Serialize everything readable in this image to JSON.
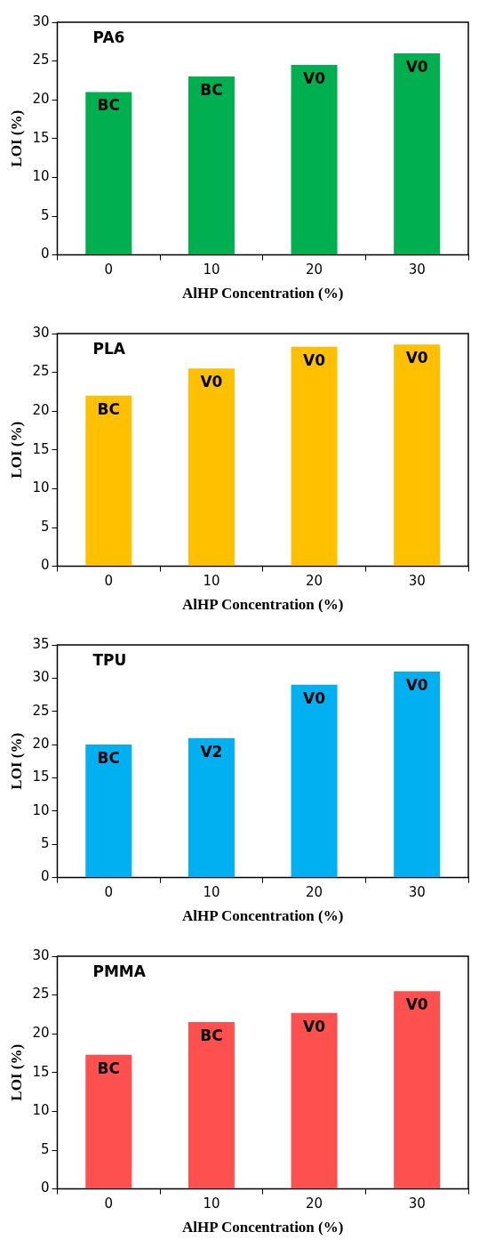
{
  "chart_data": [
    {
      "type": "bar",
      "title": "PA6",
      "xlabel": "AlHP Concentration (%)",
      "ylabel": "LOI (%)",
      "categories": [
        "0",
        "10",
        "20",
        "30"
      ],
      "values": [
        21,
        23,
        24.5,
        26
      ],
      "color": "#00b050",
      "ylim": [
        0,
        30
      ],
      "yticks": [
        0,
        5,
        10,
        15,
        20,
        25,
        30
      ],
      "grid": false,
      "legend": false,
      "annotations": [
        {
          "text": "BC",
          "x": "0",
          "y": 21
        },
        {
          "text": "BC",
          "x": "10",
          "y": 23
        },
        {
          "text": "V0",
          "x": "20",
          "y": 24.5
        },
        {
          "text": "V0",
          "x": "30",
          "y": 26
        }
      ]
    },
    {
      "type": "bar",
      "title": "PLA",
      "xlabel": "AlHP Concentration (%)",
      "ylabel": "LOI (%)",
      "categories": [
        "0",
        "10",
        "20",
        "30"
      ],
      "values": [
        22,
        25.5,
        28.3,
        28.6
      ],
      "color": "#ffc000",
      "ylim": [
        0,
        30
      ],
      "yticks": [
        0,
        5,
        10,
        15,
        20,
        25,
        30
      ],
      "grid": false,
      "legend": false,
      "annotations": [
        {
          "text": "BC",
          "x": "0",
          "y": 22
        },
        {
          "text": "V0",
          "x": "10",
          "y": 25.5
        },
        {
          "text": "V0",
          "x": "20",
          "y": 28.3
        },
        {
          "text": "V0",
          "x": "30",
          "y": 28.6
        }
      ]
    },
    {
      "type": "bar",
      "title": "TPU",
      "xlabel": "AlHP Concentration (%)",
      "ylabel": "LOI (%)",
      "categories": [
        "0",
        "10",
        "20",
        "30"
      ],
      "values": [
        20,
        21,
        29,
        31
      ],
      "color": "#00b0f0",
      "ylim": [
        0,
        35
      ],
      "yticks": [
        0,
        5,
        10,
        15,
        20,
        25,
        30,
        35
      ],
      "grid": false,
      "legend": false,
      "annotations": [
        {
          "text": "BC",
          "x": "0",
          "y": 20
        },
        {
          "text": "V2",
          "x": "10",
          "y": 21
        },
        {
          "text": "V0",
          "x": "20",
          "y": 29
        },
        {
          "text": "V0",
          "x": "30",
          "y": 31
        }
      ]
    },
    {
      "type": "bar",
      "title": "PMMA",
      "xlabel": "AlHP Concentration (%)",
      "ylabel": "LOI (%)",
      "categories": [
        "0",
        "10",
        "20",
        "30"
      ],
      "values": [
        17.3,
        21.5,
        22.7,
        25.5
      ],
      "color": "#ff5050",
      "ylim": [
        0,
        30
      ],
      "yticks": [
        0,
        5,
        10,
        15,
        20,
        25,
        30
      ],
      "grid": false,
      "legend": false,
      "annotations": [
        {
          "text": "BC",
          "x": "0",
          "y": 17.3
        },
        {
          "text": "BC",
          "x": "10",
          "y": 21.5
        },
        {
          "text": "V0",
          "x": "20",
          "y": 22.7
        },
        {
          "text": "V0",
          "x": "30",
          "y": 25.5
        }
      ]
    }
  ]
}
